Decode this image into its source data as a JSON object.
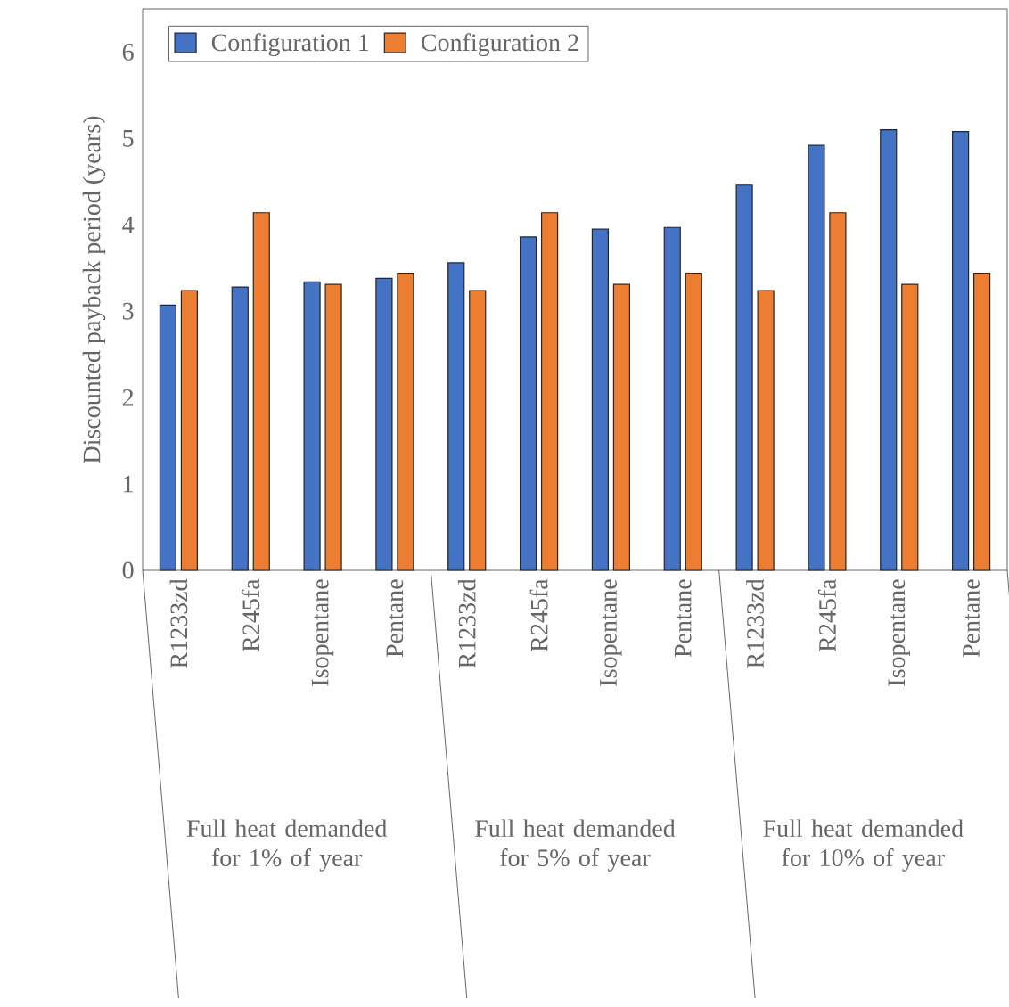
{
  "chart_data": {
    "type": "bar",
    "ylabel": "Discounted payback period (years)",
    "categories": [
      "R1233zd",
      "R245fa",
      "Isopentane",
      "Pentane",
      "R1233zd",
      "R245fa",
      "Isopentane",
      "Pentane",
      "R1233zd",
      "R245fa",
      "Isopentane",
      "Pentane"
    ],
    "series": [
      {
        "name": "Configuration 1",
        "color": "#4472c4",
        "values": [
          3.07,
          3.28,
          3.34,
          3.38,
          3.56,
          3.86,
          3.95,
          3.97,
          4.46,
          4.92,
          5.1,
          5.08
        ]
      },
      {
        "name": "Configuration 2",
        "color": "#ed7d31",
        "values": [
          3.24,
          4.14,
          3.31,
          3.44,
          3.24,
          4.14,
          3.31,
          3.44,
          3.24,
          4.14,
          3.31,
          3.44
        ]
      }
    ],
    "ylim": [
      0,
      6.5
    ],
    "yticks": [
      0,
      1,
      2,
      3,
      4,
      5,
      6
    ],
    "legend": "top left",
    "annotations": [
      "Full heat demanded for 1% of year",
      "Full heat demanded for 5% of year",
      "Full heat demanded for 10% of year"
    ]
  }
}
